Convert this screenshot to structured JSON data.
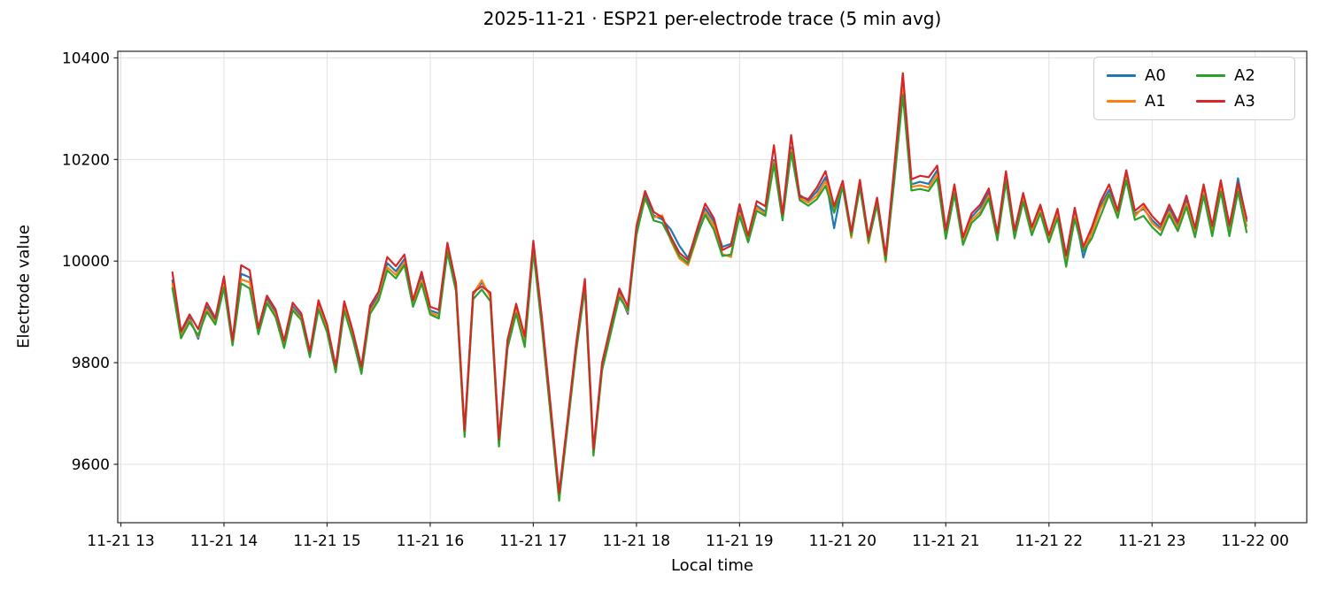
{
  "figure": {
    "title": "2025-11-21 · ESP21 per-electrode trace (5 min avg)",
    "xlabel": "Local time",
    "ylabel": "Electrode value"
  },
  "chart_data": {
    "type": "line",
    "title": "2025-11-21 · ESP21 per-electrode trace (5 min avg)",
    "xlabel": "Local time",
    "ylabel": "Electrode value",
    "grid": true,
    "legend_position": "upper right",
    "legend_columns": 2,
    "x_tick_labels": [
      "11-21 13",
      "11-21 14",
      "11-21 15",
      "11-21 16",
      "11-21 17",
      "11-21 18",
      "11-21 19",
      "11-21 20",
      "11-21 21",
      "11-21 22",
      "11-21 23",
      "11-22 00"
    ],
    "x_tick_hours": [
      13,
      14,
      15,
      16,
      17,
      18,
      19,
      20,
      21,
      22,
      23,
      24
    ],
    "y_ticks": [
      9600,
      9800,
      10000,
      10200,
      10400
    ],
    "xlim_hours": [
      12.97,
      24.5
    ],
    "ylim": [
      9485,
      10413
    ],
    "x_time_start": "13:30",
    "x_time_end": "23:55",
    "x_start_hour": 13.5,
    "x_step_minutes": 5,
    "series": [
      {
        "name": "A0",
        "color": "#1f77b4",
        "values": [
          9962,
          9856,
          9888,
          9847,
          9910,
          9882,
          9960,
          9840,
          9975,
          9968,
          9862,
          9925,
          9898,
          9837,
          9911,
          9891,
          9817,
          9915,
          9868,
          9788,
          9913,
          9855,
          9786,
          9905,
          9932,
          9996,
          9980,
          10004,
          9917,
          9969,
          9903,
          9897,
          10027,
          9950,
          9661,
          9934,
          9958,
          9932,
          9643,
          9838,
          9908,
          9845,
          10031,
          9880,
          9709,
          9540,
          9684,
          9833,
          9958,
          9626,
          9793,
          9866,
          9938,
          9896,
          10061,
          10130,
          10090,
          10082,
          10062,
          10030,
          10006,
          10055,
          10104,
          10078,
          10028,
          10034,
          10100,
          10045,
          10109,
          10097,
          10199,
          10087,
          10224,
          10130,
          10119,
          10137,
          10165,
          10065,
          10152,
          10053,
          10154,
          10043,
          10119,
          10007,
          10172,
          10347,
          10151,
          10156,
          10152,
          10179,
          10054,
          10144,
          10041,
          10087,
          10105,
          10135,
          10049,
          10165,
          10053,
          10127,
          10061,
          10104,
          10046,
          10096,
          10007,
          10095,
          10007,
          10059,
          10109,
          10140,
          10093,
          10167,
          10093,
          10103,
          10081,
          10065,
          10103,
          10069,
          10119,
          10057,
          10142,
          10061,
          10149,
          10061,
          10163,
          10079
        ]
      },
      {
        "name": "A1",
        "color": "#ff7f0e",
        "values": [
          9955,
          9852,
          9884,
          9851,
          9905,
          9878,
          9954,
          9837,
          9964,
          9958,
          9858,
          9920,
          9894,
          9833,
          9906,
          9887,
          9814,
          9910,
          9864,
          9784,
          9908,
          9850,
          9782,
          9900,
          9927,
          9988,
          9973,
          9998,
          9913,
          9962,
          9899,
          9892,
          10023,
          9946,
          9657,
          9936,
          9962,
          9929,
          9639,
          9834,
          9903,
          9839,
          10026,
          9874,
          9704,
          9536,
          9680,
          9829,
          9953,
          9622,
          9789,
          9862,
          9934,
          9900,
          10056,
          10122,
          10086,
          10090,
          10040,
          10005,
          9992,
          10044,
          10097,
          10070,
          10014,
          10008,
          10094,
          10041,
          10105,
          10093,
          10195,
          10084,
          10219,
          10124,
          10115,
          10129,
          10157,
          10102,
          10149,
          10046,
          10150,
          10035,
          10115,
          9998,
          10164,
          10341,
          10146,
          10149,
          10145,
          10171,
          10049,
          10139,
          10037,
          10081,
          10097,
          10129,
          10045,
          10163,
          10049,
          10123,
          10057,
          10099,
          10042,
          10091,
          10001,
          10089,
          10023,
          10055,
          10103,
          10133,
          10089,
          10163,
          10088,
          10107,
          10075,
          10061,
          10097,
          10065,
          10113,
          10052,
          10135,
          10055,
          10143,
          10053,
          10145,
          10069
        ]
      },
      {
        "name": "A2",
        "color": "#2ca02c",
        "values": [
          9947,
          9848,
          9880,
          9854,
          9900,
          9875,
          9948,
          9834,
          9956,
          9946,
          9856,
          9917,
          9890,
          9829,
          9903,
          9884,
          9811,
          9905,
          9860,
          9781,
          9903,
          9846,
          9778,
          9896,
          9923,
          9982,
          9966,
          9992,
          9910,
          9956,
          9895,
          9887,
          10017,
          9941,
          9654,
          9925,
          9944,
          9921,
          9635,
          9829,
          9897,
          9831,
          10019,
          9868,
          9698,
          9528,
          9675,
          9824,
          9947,
          9617,
          9785,
          9857,
          9929,
          9903,
          10051,
          10126,
          10080,
          10075,
          10043,
          10010,
          9996,
          10048,
          10091,
          10062,
          10010,
          10013,
          10089,
          10037,
          10099,
          10089,
          10191,
          10080,
          10214,
          10120,
          10109,
          10122,
          10148,
          10095,
          10145,
          10050,
          10145,
          10039,
          10111,
          10001,
          10157,
          10327,
          10139,
          10142,
          10138,
          10163,
          10044,
          10132,
          10032,
          10075,
          10091,
          10123,
          10041,
          10156,
          10045,
          10117,
          10051,
          10094,
          10037,
          10085,
          9989,
          10083,
          10019,
          10045,
          10089,
          10131,
          10085,
          10159,
          10081,
          10089,
          10067,
          10051,
          10091,
          10059,
          10107,
          10047,
          10129,
          10049,
          10137,
          10049,
          10137,
          10057
        ]
      },
      {
        "name": "A3",
        "color": "#d62728",
        "values": [
          9978,
          9862,
          9895,
          9866,
          9918,
          9888,
          9970,
          9844,
          9992,
          9982,
          9868,
          9932,
          9905,
          9843,
          9918,
          9897,
          9822,
          9923,
          9875,
          9793,
          9921,
          9862,
          9792,
          9912,
          9940,
          10008,
          9990,
          10013,
          9923,
          9979,
          9910,
          9904,
          10036,
          9956,
          9667,
          9939,
          9950,
          9938,
          9649,
          9845,
          9916,
          9852,
          10040,
          9888,
          9718,
          9543,
          9690,
          9840,
          9965,
          9630,
          9800,
          9873,
          9946,
          9910,
          10069,
          10138,
          10097,
          10086,
          10048,
          10016,
          10002,
          10060,
          10113,
          10085,
          10022,
          10030,
          10112,
          10050,
          10118,
          10108,
          10228,
          10092,
          10248,
          10127,
          10122,
          10145,
          10177,
          10108,
          10158,
          10057,
          10160,
          10047,
          10125,
          10011,
          10185,
          10370,
          10161,
          10168,
          10165,
          10188,
          10061,
          10151,
          10047,
          10094,
          10111,
          10143,
          10055,
          10177,
          10060,
          10134,
          10067,
          10111,
          10051,
          10103,
          10011,
          10105,
          10028,
          10067,
          10117,
          10151,
          10099,
          10179,
          10099,
          10113,
          10089,
          10071,
          10111,
          10077,
          10129,
          10065,
          10151,
          10069,
          10159,
          10071,
          10154,
          10084
        ]
      }
    ],
    "style": {
      "grid_color": "#e0e0e0",
      "spine_color": "#262626",
      "tick_label_size": 17,
      "line_width": 2.2
    }
  }
}
